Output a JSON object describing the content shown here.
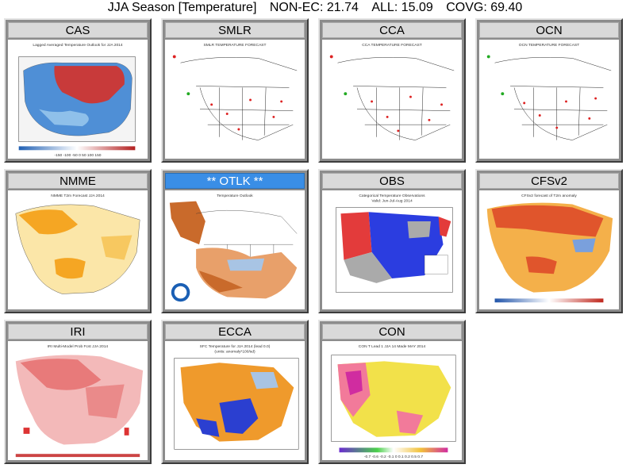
{
  "header": {
    "season": "JJA Season [Temperature]",
    "non_ec": "NON-EC: 21.74",
    "all": "ALL: 15.09",
    "covg": "COVG: 69.40"
  },
  "panels": [
    {
      "label": "CAS",
      "caption": "Lagged Averaged Temperature Outlook for JJA 2014",
      "scale": "-150 -100 -50 0 50 100 150"
    },
    {
      "label": "SMLR",
      "caption": "SMLR TEMPERATURE FORECAST",
      "scale": ""
    },
    {
      "label": "CCA",
      "caption": "CCA TEMPERATURE FORECAST",
      "scale": ""
    },
    {
      "label": "OCN",
      "caption": "OCN TEMPERATURE FORECAST",
      "scale": ""
    },
    {
      "label": "NMME",
      "caption": "NMME T2m Forecast JJA 2014",
      "scale": ""
    },
    {
      "label": "** OTLK **",
      "caption": "Temperature Outlook",
      "scale": ""
    },
    {
      "label": "OBS",
      "caption": "Categorical Temperature Observations",
      "scale": "Valid: Jun-Jul-Aug 2014"
    },
    {
      "label": "CFSv2",
      "caption": "CFSv2 forecast of T2m anomaly",
      "scale": ""
    },
    {
      "label": "IRI",
      "caption": "IRI Multi-Model Prob Fcst JJA 2014",
      "scale": ""
    },
    {
      "label": "ECCA",
      "caption": "SFC Temperature for JJA 2014 (lead 0.0)",
      "scale": "(units: anomaly*100/sd)"
    },
    {
      "label": "CON",
      "caption": "CON T Lead 1 JJA 14 Made MAY 2014",
      "scale": "-0.7 -0.6 -0.2 -0.1 0 0.1 0.2 0.5 0.7"
    }
  ],
  "colors": {
    "panel_bg": "#8c8c8c",
    "header_bg": "#d9d9d9",
    "selected_header": "#3a8ee6"
  }
}
